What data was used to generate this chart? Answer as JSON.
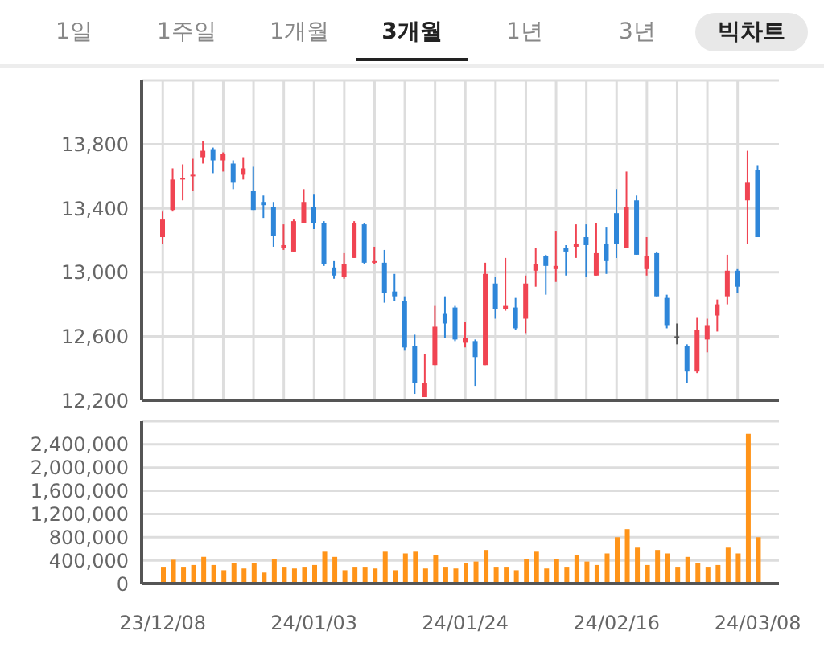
{
  "chart_data": [
    {
      "type": "candlestick",
      "annotations": [
        "1일",
        "1주일",
        "1개월",
        "3개월",
        "1년",
        "3년",
        "빅차트"
      ],
      "categories": [
        null,
        null,
        null,
        null,
        null,
        null,
        null,
        null,
        null,
        null,
        null,
        null,
        null,
        null,
        null,
        null,
        null,
        null,
        null,
        null,
        null,
        null,
        null,
        null,
        null,
        null,
        null,
        null,
        null,
        null,
        null,
        null,
        null,
        null,
        null,
        null,
        null,
        null,
        null,
        null,
        null,
        null,
        null,
        null,
        null,
        null,
        null,
        null,
        null,
        null,
        null,
        null,
        null,
        null,
        null,
        null,
        null,
        null,
        null,
        null
      ],
      "ohlc": [
        [
          13220,
          13380,
          13180,
          13330
        ],
        [
          13390,
          13650,
          13380,
          13580
        ],
        [
          13580,
          13675,
          13450,
          13590
        ],
        [
          13600,
          13710,
          13510,
          13610
        ],
        [
          13720,
          13820,
          13680,
          13760
        ],
        [
          13770,
          13780,
          13620,
          13700
        ],
        [
          13700,
          13750,
          13630,
          13740
        ],
        [
          13680,
          13700,
          13520,
          13560
        ],
        [
          13610,
          13720,
          13580,
          13650
        ],
        [
          13510,
          13660,
          13390,
          13390
        ],
        [
          13440,
          13480,
          13340,
          13420
        ],
        [
          13410,
          13440,
          13160,
          13230
        ],
        [
          13150,
          13300,
          13140,
          13170
        ],
        [
          13130,
          13330,
          13130,
          13320
        ],
        [
          13310,
          13520,
          13310,
          13440
        ],
        [
          13410,
          13490,
          13270,
          13310
        ],
        [
          13310,
          13320,
          13040,
          13050
        ],
        [
          13030,
          13070,
          12960,
          12980
        ],
        [
          12970,
          13120,
          12960,
          13050
        ],
        [
          13090,
          13320,
          13090,
          13310
        ],
        [
          13300,
          13310,
          13050,
          13060
        ],
        [
          13060,
          13160,
          13050,
          13070
        ],
        [
          13060,
          13140,
          12810,
          12870
        ],
        [
          12880,
          12990,
          12820,
          12850
        ],
        [
          12820,
          12850,
          12510,
          12530
        ],
        [
          12540,
          12610,
          12240,
          12310
        ],
        [
          12220,
          12490,
          12220,
          12310
        ],
        [
          12420,
          12790,
          12420,
          12660
        ],
        [
          12740,
          12850,
          12590,
          12680
        ],
        [
          12780,
          12790,
          12570,
          12580
        ],
        [
          12560,
          12690,
          12530,
          12590
        ],
        [
          12570,
          12580,
          12290,
          12470
        ],
        [
          12420,
          13060,
          12420,
          12990
        ],
        [
          12930,
          12970,
          12710,
          12770
        ],
        [
          12770,
          13090,
          12760,
          12790
        ],
        [
          12780,
          12840,
          12640,
          12650
        ],
        [
          12710,
          12980,
          12620,
          12930
        ],
        [
          13010,
          13150,
          12910,
          13050
        ],
        [
          13100,
          13110,
          12860,
          13040
        ],
        [
          13020,
          13260,
          12940,
          13040
        ],
        [
          13150,
          13170,
          12980,
          13130
        ],
        [
          13160,
          13300,
          13090,
          13180
        ],
        [
          13220,
          13300,
          12970,
          13170
        ],
        [
          12980,
          13310,
          12980,
          13120
        ],
        [
          13180,
          13280,
          12990,
          13070
        ],
        [
          13370,
          13520,
          13090,
          13180
        ],
        [
          13150,
          13630,
          13150,
          13410
        ],
        [
          13450,
          13480,
          13110,
          13110
        ],
        [
          13020,
          13220,
          12980,
          13100
        ],
        [
          13120,
          13130,
          12850,
          12850
        ],
        [
          12840,
          12860,
          12650,
          12670
        ],
        [
          12600,
          12680,
          12550,
          12600
        ],
        [
          12540,
          12550,
          12310,
          12380
        ],
        [
          12380,
          12720,
          12370,
          12640
        ],
        [
          12580,
          12710,
          12500,
          12670
        ],
        [
          12730,
          12830,
          12630,
          12800
        ],
        [
          12850,
          13110,
          12800,
          13010
        ],
        [
          13010,
          13020,
          12870,
          12910
        ],
        [
          13450,
          13760,
          13180,
          13560
        ],
        [
          13640,
          13670,
          13220,
          13220
        ]
      ],
      "colors": [
        "#f04452",
        "#f04452",
        "#f04452",
        "#f04452",
        "#f04452",
        "#2e86d9",
        "#f04452",
        "#2e86d9",
        "#f04452",
        "#2e86d9",
        "#2e86d9",
        "#2e86d9",
        "#f04452",
        "#f04452",
        "#f04452",
        "#2e86d9",
        "#2e86d9",
        "#2e86d9",
        "#f04452",
        "#f04452",
        "#2e86d9",
        "#f04452",
        "#2e86d9",
        "#2e86d9",
        "#2e86d9",
        "#2e86d9",
        "#f04452",
        "#f04452",
        "#2e86d9",
        "#2e86d9",
        "#f04452",
        "#2e86d9",
        "#f04452",
        "#2e86d9",
        "#f04452",
        "#2e86d9",
        "#f04452",
        "#f04452",
        "#2e86d9",
        "#f04452",
        "#2e86d9",
        "#f04452",
        "#2e86d9",
        "#f04452",
        "#2e86d9",
        "#2e86d9",
        "#f04452",
        "#2e86d9",
        "#f04452",
        "#2e86d9",
        "#2e86d9",
        "#555555",
        "#2e86d9",
        "#f04452",
        "#f04452",
        "#f04452",
        "#f04452",
        "#2e86d9",
        "#f04452",
        "#2e86d9"
      ],
      "ylim": [
        12200,
        14200
      ],
      "yticks": [
        {
          "value": 12200,
          "label": "12,200"
        },
        {
          "value": 12600,
          "label": "12,600"
        },
        {
          "value": 13000,
          "label": "13,000"
        },
        {
          "value": 13400,
          "label": "13,400"
        },
        {
          "value": 13800,
          "label": "13,800"
        }
      ],
      "grid": true,
      "tick_labels": "y"
    },
    {
      "type": "bar",
      "categories": [
        "23/12/08",
        null,
        null,
        null,
        null,
        null,
        null,
        null,
        null,
        null,
        null,
        null,
        null,
        null,
        null,
        "24/01/03",
        null,
        null,
        null,
        null,
        null,
        null,
        null,
        null,
        null,
        null,
        null,
        null,
        null,
        null,
        "24/01/24",
        null,
        null,
        null,
        null,
        null,
        null,
        null,
        null,
        null,
        null,
        null,
        null,
        null,
        null,
        "24/02/16",
        null,
        null,
        null,
        null,
        null,
        null,
        null,
        null,
        null,
        null,
        null,
        null,
        null,
        "24/03/08"
      ],
      "values": [
        290000,
        410000,
        290000,
        320000,
        460000,
        320000,
        230000,
        350000,
        260000,
        360000,
        190000,
        420000,
        290000,
        260000,
        290000,
        320000,
        550000,
        460000,
        230000,
        290000,
        290000,
        260000,
        550000,
        230000,
        520000,
        550000,
        260000,
        490000,
        290000,
        260000,
        350000,
        380000,
        580000,
        290000,
        290000,
        230000,
        420000,
        550000,
        260000,
        420000,
        290000,
        490000,
        380000,
        320000,
        520000,
        800000,
        940000,
        620000,
        320000,
        580000,
        520000,
        290000,
        460000,
        350000,
        290000,
        320000,
        620000,
        520000,
        2580000,
        800000
      ],
      "color": "#ff9419",
      "ylim": [
        0,
        2800000
      ],
      "yticks": [
        {
          "value": 0,
          "label": "0"
        },
        {
          "value": 400000,
          "label": "400,000"
        },
        {
          "value": 800000,
          "label": "800,000"
        },
        {
          "value": 1200000,
          "label": "1,200,000"
        },
        {
          "value": 1600000,
          "label": "1,600,000"
        },
        {
          "value": 2000000,
          "label": "2,000,000"
        },
        {
          "value": 2400000,
          "label": "2,400,000"
        }
      ],
      "grid": "y"
    }
  ]
}
